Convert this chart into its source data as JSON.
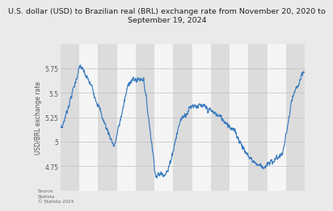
{
  "title_line1": "U.S. dollar (USD) to Brazilian real (BRL) exchange rate from November 20, 2020 to",
  "title_line2": "September 19, 2024",
  "ylabel": "USD/BRL exchange rate",
  "ylim": [
    4.5,
    6.0
  ],
  "yticks": [
    4.75,
    5.0,
    5.25,
    5.5,
    5.75
  ],
  "ytick_labels": [
    "4.75",
    "5",
    "5.25",
    "5.5",
    "5.75"
  ],
  "line_color": "#3a7bbf",
  "bg_color": "#eaeaea",
  "plot_bg_color": "#f5f5f5",
  "strip_color": "#dcdcdc",
  "source_text": "Source:\nStatista\n© Statista 2024",
  "title_fontsize": 6.8,
  "label_fontsize": 5.5,
  "tick_fontsize": 5.5,
  "waypoints_x": [
    0,
    30,
    80,
    130,
    175,
    220,
    280,
    340,
    390,
    440,
    490,
    540,
    590,
    640,
    680,
    720,
    760,
    800,
    840,
    875,
    910,
    950,
    999
  ],
  "waypoints_y": [
    5.1,
    5.35,
    5.78,
    5.55,
    5.22,
    4.95,
    5.62,
    5.65,
    4.65,
    4.7,
    5.22,
    5.38,
    5.35,
    5.28,
    5.2,
    5.08,
    4.88,
    4.78,
    4.74,
    4.82,
    4.88,
    5.45,
    5.72
  ]
}
